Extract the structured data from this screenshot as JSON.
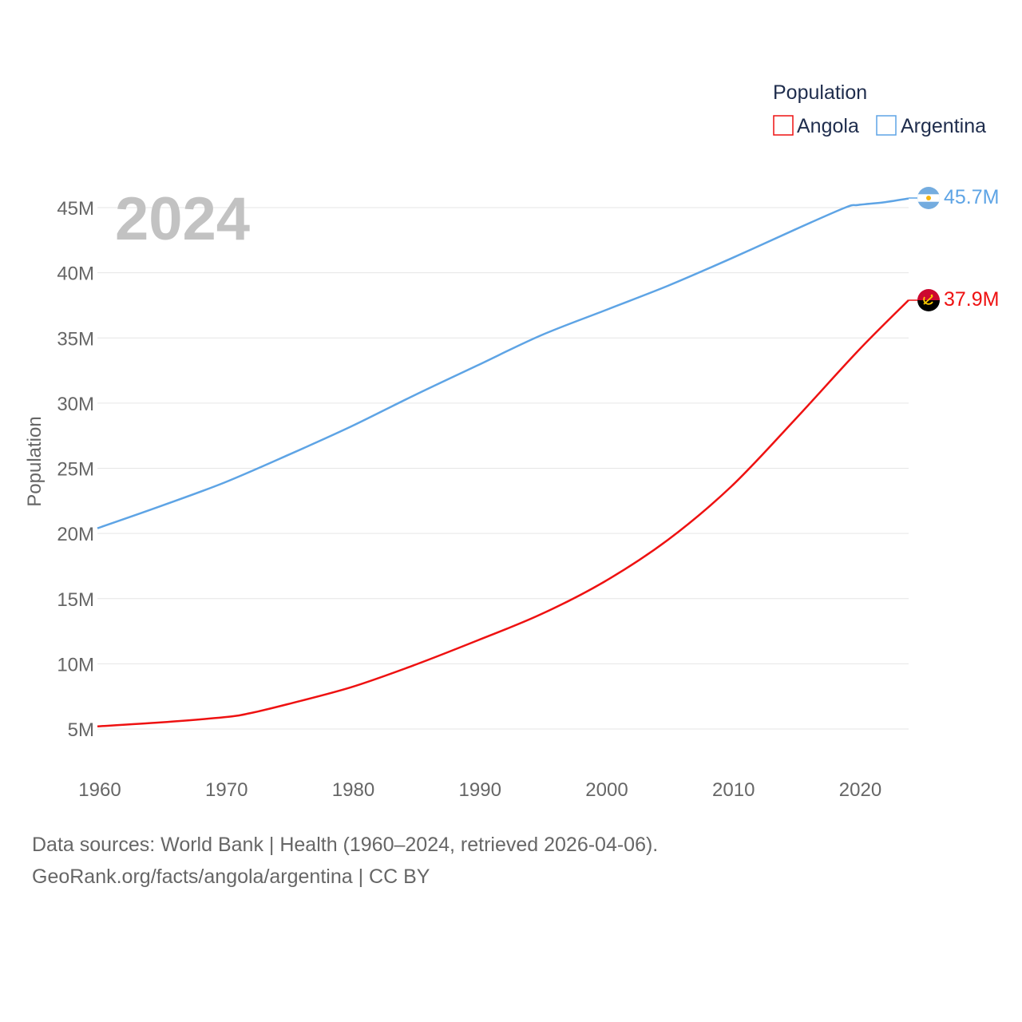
{
  "chart_data": {
    "type": "line",
    "year_label": "2024",
    "ylabel": "Population",
    "xlabel": "",
    "xlim": [
      1960,
      2024
    ],
    "ylim": [
      2500000,
      47500000
    ],
    "x_ticks": [
      1960,
      1970,
      1980,
      1990,
      2000,
      2010,
      2020
    ],
    "x_tick_labels": [
      "1960",
      "1970",
      "1980",
      "1990",
      "2000",
      "2010",
      "2020"
    ],
    "y_ticks": [
      5000000,
      10000000,
      15000000,
      20000000,
      25000000,
      30000000,
      35000000,
      40000000,
      45000000
    ],
    "y_tick_labels": [
      "5M",
      "10M",
      "15M",
      "20M",
      "25M",
      "30M",
      "35M",
      "40M",
      "45M"
    ],
    "legend": {
      "title": "Population",
      "position": "top-right",
      "items": [
        {
          "label": "Angola",
          "color": "#ee1111"
        },
        {
          "label": "Argentina",
          "color": "#5ea4e5"
        }
      ]
    },
    "series": [
      {
        "name": "Angola",
        "color": "#ee1111",
        "end_label": "37.9M",
        "flag_icon": "angola-flag-icon",
        "x": [
          1960,
          1965,
          1970,
          1972,
          1975,
          1980,
          1985,
          1990,
          1995,
          2000,
          2005,
          2010,
          2015,
          2020,
          2024
        ],
        "values": [
          5200000,
          5500000,
          5900000,
          6200000,
          6900000,
          8200000,
          9900000,
          11800000,
          13800000,
          16300000,
          19500000,
          23600000,
          28700000,
          34000000,
          37900000
        ]
      },
      {
        "name": "Argentina",
        "color": "#5ea4e5",
        "end_label": "45.7M",
        "flag_icon": "argentina-flag-icon",
        "x": [
          1960,
          1965,
          1970,
          1975,
          1980,
          1985,
          1990,
          1995,
          2000,
          2005,
          2010,
          2015,
          2019,
          2020,
          2022,
          2024
        ],
        "values": [
          20400000,
          22100000,
          23900000,
          26000000,
          28200000,
          30600000,
          32900000,
          35200000,
          37100000,
          39000000,
          41100000,
          43300000,
          45000000,
          45200000,
          45400000,
          45700000
        ]
      }
    ]
  },
  "footer": {
    "source": "Data sources: World Bank | Health (1960–2024, retrieved 2026-04-06).",
    "credit": "GeoRank.org/facts/angola/argentina | CC BY"
  }
}
